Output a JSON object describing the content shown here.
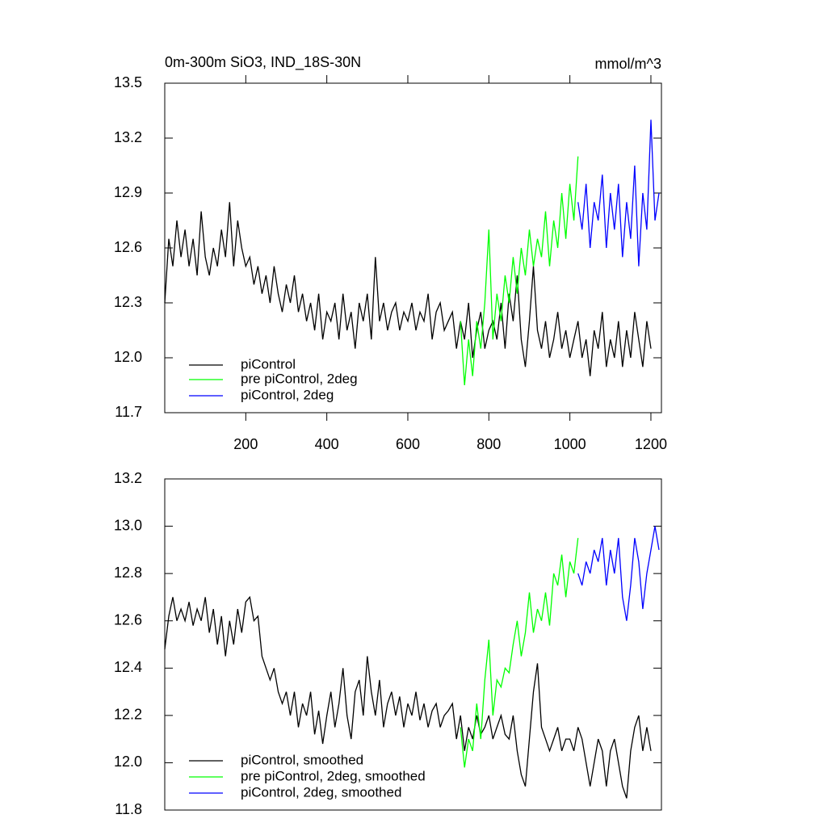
{
  "chart_data": [
    {
      "type": "line",
      "title": "0m-300m SiO3, IND_18S-30N",
      "units": "mmol/m^3",
      "xlim": [
        0,
        1226
      ],
      "xticks": [
        200,
        400,
        600,
        800,
        1000,
        1200
      ],
      "ylim": [
        11.7,
        13.5
      ],
      "yticks": [
        11.7,
        {
          "value": 12.0,
          "label": "12.0"
        },
        12.3,
        12.6,
        12.9,
        13.2,
        13.5
      ],
      "series": [
        {
          "name": "piControl",
          "color": "#000000",
          "x": [
            0,
            10,
            20,
            30,
            40,
            50,
            60,
            70,
            80,
            90,
            100,
            110,
            120,
            130,
            140,
            150,
            160,
            170,
            180,
            190,
            200,
            210,
            220,
            230,
            240,
            250,
            260,
            270,
            280,
            290,
            300,
            310,
            320,
            330,
            340,
            350,
            360,
            370,
            380,
            390,
            400,
            410,
            420,
            430,
            440,
            450,
            460,
            470,
            480,
            490,
            500,
            510,
            520,
            530,
            540,
            550,
            560,
            570,
            580,
            590,
            600,
            610,
            620,
            630,
            640,
            650,
            660,
            670,
            680,
            690,
            700,
            710,
            720,
            730,
            740,
            750,
            760,
            770,
            780,
            790,
            800,
            810,
            820,
            830,
            840,
            850,
            860,
            870,
            880,
            890,
            900,
            910,
            920,
            930,
            940,
            950,
            960,
            970,
            980,
            990,
            1000,
            1010,
            1020,
            1030,
            1040,
            1050,
            1060,
            1070,
            1080,
            1090,
            1100,
            1110,
            1120,
            1130,
            1140,
            1150,
            1160,
            1170,
            1180,
            1190,
            1200
          ],
          "values": [
            12.3,
            12.65,
            12.5,
            12.75,
            12.55,
            12.7,
            12.5,
            12.65,
            12.45,
            12.8,
            12.55,
            12.45,
            12.6,
            12.5,
            12.7,
            12.55,
            12.85,
            12.5,
            12.75,
            12.6,
            12.5,
            12.55,
            12.4,
            12.5,
            12.35,
            12.45,
            12.3,
            12.5,
            12.35,
            12.25,
            12.4,
            12.3,
            12.45,
            12.25,
            12.35,
            12.2,
            12.3,
            12.15,
            12.35,
            12.1,
            12.25,
            12.2,
            12.3,
            12.1,
            12.35,
            12.15,
            12.25,
            12.05,
            12.3,
            12.2,
            12.35,
            12.1,
            12.55,
            12.2,
            12.3,
            12.15,
            12.25,
            12.3,
            12.15,
            12.25,
            12.2,
            12.3,
            12.15,
            12.25,
            12.2,
            12.35,
            12.1,
            12.25,
            12.3,
            12.15,
            12.2,
            12.25,
            12.05,
            12.2,
            12.1,
            12.3,
            12.0,
            12.15,
            12.25,
            12.05,
            12.15,
            12.2,
            12.1,
            12.3,
            12.05,
            12.35,
            12.2,
            12.45,
            12.1,
            11.95,
            12.2,
            12.5,
            12.15,
            12.05,
            12.2,
            12.0,
            12.1,
            12.25,
            12.05,
            12.15,
            12.0,
            12.1,
            12.2,
            12.0,
            12.1,
            11.9,
            12.15,
            12.05,
            12.25,
            11.95,
            12.1,
            12.0,
            12.2,
            11.95,
            12.15,
            12.0,
            12.25,
            12.1,
            11.95,
            12.2,
            12.05
          ]
        },
        {
          "name": "pre piControl, 2deg",
          "color": "#00ff00",
          "x": [
            730,
            740,
            750,
            760,
            770,
            780,
            790,
            800,
            810,
            820,
            830,
            840,
            850,
            860,
            870,
            880,
            890,
            900,
            910,
            920,
            930,
            940,
            950,
            960,
            970,
            980,
            990,
            1000,
            1010,
            1020
          ],
          "values": [
            12.2,
            11.85,
            12.1,
            11.9,
            12.2,
            12.05,
            12.3,
            12.7,
            12.1,
            12.35,
            12.2,
            12.45,
            12.3,
            12.55,
            12.35,
            12.6,
            12.45,
            12.7,
            12.5,
            12.65,
            12.55,
            12.8,
            12.5,
            12.75,
            12.6,
            12.9,
            12.65,
            12.95,
            12.75,
            13.1
          ]
        },
        {
          "name": "piControl, 2deg",
          "color": "#0000ff",
          "x": [
            1020,
            1030,
            1040,
            1050,
            1060,
            1070,
            1080,
            1090,
            1100,
            1110,
            1120,
            1130,
            1140,
            1150,
            1160,
            1170,
            1180,
            1190,
            1200,
            1210,
            1220
          ],
          "values": [
            12.85,
            12.7,
            12.95,
            12.6,
            12.85,
            12.75,
            13.0,
            12.6,
            12.9,
            12.7,
            12.95,
            12.55,
            12.85,
            12.65,
            13.05,
            12.5,
            12.9,
            12.7,
            13.3,
            12.75,
            12.9
          ]
        }
      ]
    },
    {
      "type": "line",
      "xlim": [
        0,
        1226
      ],
      "ylim": [
        11.8,
        13.2
      ],
      "yticks": [
        11.8,
        {
          "value": 12.0,
          "label": "12.0"
        },
        12.2,
        12.4,
        12.6,
        12.8,
        {
          "value": 13.0,
          "label": "13.0"
        },
        13.2
      ],
      "series": [
        {
          "name": "piControl, smoothed",
          "color": "#000000",
          "x": [
            0,
            10,
            20,
            30,
            40,
            50,
            60,
            70,
            80,
            90,
            100,
            110,
            120,
            130,
            140,
            150,
            160,
            170,
            180,
            190,
            200,
            210,
            220,
            230,
            240,
            250,
            260,
            270,
            280,
            290,
            300,
            310,
            320,
            330,
            340,
            350,
            360,
            370,
            380,
            390,
            400,
            410,
            420,
            430,
            440,
            450,
            460,
            470,
            480,
            490,
            500,
            510,
            520,
            530,
            540,
            550,
            560,
            570,
            580,
            590,
            600,
            610,
            620,
            630,
            640,
            650,
            660,
            670,
            680,
            690,
            700,
            710,
            720,
            730,
            740,
            750,
            760,
            770,
            780,
            790,
            800,
            810,
            820,
            830,
            840,
            850,
            860,
            870,
            880,
            890,
            900,
            910,
            920,
            930,
            940,
            950,
            960,
            970,
            980,
            990,
            1000,
            1010,
            1020,
            1030,
            1040,
            1050,
            1060,
            1070,
            1080,
            1090,
            1100,
            1110,
            1120,
            1130,
            1140,
            1150,
            1160,
            1170,
            1180,
            1190,
            1200
          ],
          "values": [
            12.48,
            12.62,
            12.7,
            12.6,
            12.65,
            12.6,
            12.68,
            12.58,
            12.65,
            12.6,
            12.7,
            12.55,
            12.65,
            12.5,
            12.62,
            12.45,
            12.6,
            12.5,
            12.65,
            12.55,
            12.68,
            12.7,
            12.6,
            12.62,
            12.45,
            12.4,
            12.35,
            12.4,
            12.3,
            12.25,
            12.3,
            12.2,
            12.3,
            12.15,
            12.25,
            12.2,
            12.3,
            12.12,
            12.22,
            12.08,
            12.2,
            12.3,
            12.15,
            12.25,
            12.4,
            12.2,
            12.1,
            12.3,
            12.35,
            12.2,
            12.45,
            12.3,
            12.2,
            12.35,
            12.15,
            12.25,
            12.3,
            12.2,
            12.28,
            12.15,
            12.25,
            12.2,
            12.3,
            12.18,
            12.25,
            12.15,
            12.22,
            12.25,
            12.15,
            12.2,
            12.22,
            12.25,
            12.1,
            12.2,
            12.05,
            12.15,
            12.1,
            12.2,
            12.12,
            12.15,
            12.2,
            12.1,
            12.15,
            12.2,
            12.12,
            12.1,
            12.2,
            12.05,
            11.95,
            11.9,
            12.1,
            12.3,
            12.42,
            12.15,
            12.1,
            12.05,
            12.1,
            12.15,
            12.05,
            12.1,
            12.1,
            12.05,
            12.15,
            12.1,
            12.0,
            11.9,
            12.0,
            12.1,
            12.05,
            11.9,
            12.05,
            12.1,
            12.0,
            11.9,
            11.85,
            12.05,
            12.15,
            12.2,
            12.05,
            12.15,
            12.05
          ]
        },
        {
          "name": "pre piControl, 2deg, smoothed",
          "color": "#00ff00",
          "x": [
            730,
            740,
            750,
            760,
            770,
            780,
            790,
            800,
            810,
            820,
            830,
            840,
            850,
            860,
            870,
            880,
            890,
            900,
            910,
            920,
            930,
            940,
            950,
            960,
            970,
            980,
            990,
            1000,
            1010,
            1020
          ],
          "values": [
            12.15,
            11.98,
            12.1,
            12.05,
            12.25,
            12.1,
            12.35,
            12.52,
            12.2,
            12.35,
            12.32,
            12.4,
            12.38,
            12.5,
            12.6,
            12.45,
            12.55,
            12.72,
            12.55,
            12.65,
            12.6,
            12.72,
            12.58,
            12.8,
            12.75,
            12.88,
            12.7,
            12.85,
            12.8,
            12.95
          ]
        },
        {
          "name": "piControl, 2deg, smoothed",
          "color": "#0000ff",
          "x": [
            1020,
            1030,
            1040,
            1050,
            1060,
            1070,
            1080,
            1090,
            1100,
            1110,
            1120,
            1130,
            1140,
            1150,
            1160,
            1170,
            1180,
            1190,
            1200,
            1210,
            1220
          ],
          "values": [
            12.8,
            12.75,
            12.85,
            12.8,
            12.9,
            12.85,
            12.95,
            12.75,
            12.9,
            12.8,
            12.95,
            12.7,
            12.6,
            12.75,
            12.95,
            12.85,
            12.65,
            12.8,
            12.9,
            13.0,
            12.9
          ]
        }
      ]
    }
  ]
}
